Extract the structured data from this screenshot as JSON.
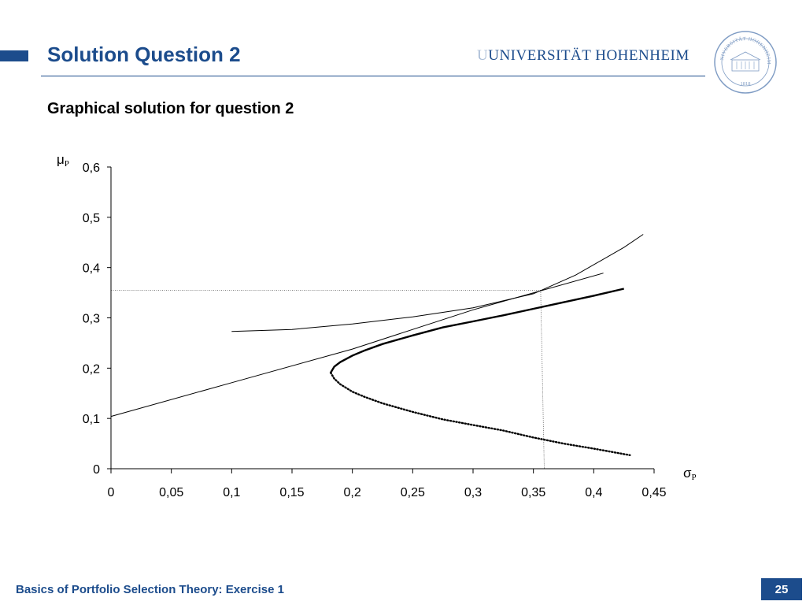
{
  "header": {
    "title": "Solution Question 2",
    "university_name": "UNIVERSITÄT HOHENHEIM",
    "university_mark": "U",
    "seal_text_top": "UNIVERSITÄT HOHENHEIM",
    "seal_year": "1818",
    "brand_color": "#1c4c8c"
  },
  "subtitle": "Graphical solution for question 2",
  "chart_data": {
    "type": "line",
    "y_axis_label": "μ",
    "y_axis_label_sub": "P",
    "x_axis_label": "σ",
    "x_axis_label_sub": "P",
    "xlim": [
      0,
      0.45
    ],
    "ylim": [
      0,
      0.6
    ],
    "x_ticks": [
      {
        "value": 0,
        "label": "0"
      },
      {
        "value": 0.05,
        "label": "0,05"
      },
      {
        "value": 0.1,
        "label": "0,1"
      },
      {
        "value": 0.15,
        "label": "0,15"
      },
      {
        "value": 0.2,
        "label": "0,2"
      },
      {
        "value": 0.25,
        "label": "0,25"
      },
      {
        "value": 0.3,
        "label": "0,3"
      },
      {
        "value": 0.35,
        "label": "0,35"
      },
      {
        "value": 0.4,
        "label": "0,4"
      },
      {
        "value": 0.45,
        "label": "0,45"
      }
    ],
    "y_ticks": [
      {
        "value": 0,
        "label": "0"
      },
      {
        "value": 0.1,
        "label": "0,1"
      },
      {
        "value": 0.2,
        "label": "0,2"
      },
      {
        "value": 0.3,
        "label": "0,3"
      },
      {
        "value": 0.4,
        "label": "0,4"
      },
      {
        "value": 0.5,
        "label": "0,5"
      },
      {
        "value": 0.6,
        "label": "0,6"
      }
    ],
    "grid": false,
    "series": [
      {
        "style": "thick",
        "x": [
          0.182,
          0.185,
          0.19,
          0.2,
          0.21,
          0.225,
          0.25,
          0.275,
          0.3,
          0.325,
          0.35,
          0.375,
          0.4,
          0.425
        ],
        "y": [
          0.191,
          0.203,
          0.212,
          0.225,
          0.235,
          0.248,
          0.265,
          0.281,
          0.293,
          0.305,
          0.318,
          0.331,
          0.344,
          0.358
        ]
      },
      {
        "style": "dotted",
        "x": [
          0.182,
          0.185,
          0.19,
          0.2,
          0.21,
          0.225,
          0.25,
          0.275,
          0.3,
          0.325,
          0.35,
          0.375,
          0.4,
          0.43
        ],
        "y": [
          0.191,
          0.179,
          0.168,
          0.153,
          0.143,
          0.13,
          0.113,
          0.098,
          0.087,
          0.076,
          0.062,
          0.05,
          0.04,
          0.027
        ]
      },
      {
        "style": "thin",
        "x": [
          0,
          0.1,
          0.2,
          0.3,
          0.408
        ],
        "y": [
          0.104,
          0.171,
          0.238,
          0.316,
          0.389
        ]
      },
      {
        "style": "thin",
        "x": [
          0.1,
          0.15,
          0.2,
          0.25,
          0.3,
          0.35,
          0.385,
          0.425,
          0.441
        ],
        "y": [
          0.273,
          0.277,
          0.288,
          0.302,
          0.32,
          0.348,
          0.385,
          0.44,
          0.466
        ]
      }
    ],
    "reference_lines": [
      {
        "style": "dotted-thin",
        "x": [
          0,
          0.356
        ],
        "y": [
          0.355,
          0.355
        ]
      },
      {
        "style": "dotted-thin",
        "x": [
          0.356,
          0.359
        ],
        "y": [
          0.355,
          0
        ]
      }
    ]
  },
  "footer": {
    "text": "Basics of Portfolio Selection Theory: Exercise 1",
    "page_number": "25"
  }
}
